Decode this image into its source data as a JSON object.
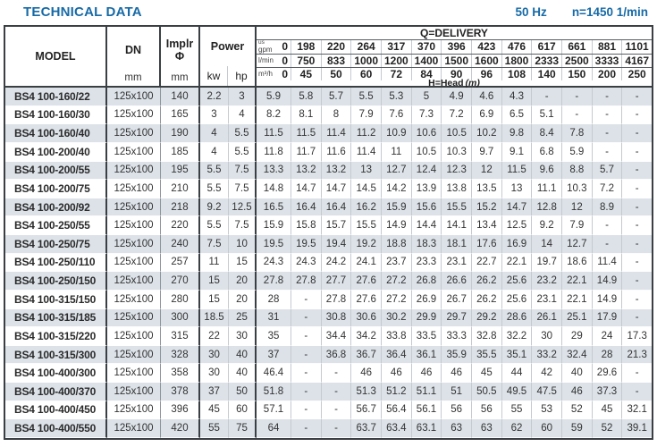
{
  "title": "TECHNICAL DATA",
  "frequency": "50 Hz",
  "speed": "n=1450 1/min",
  "header": {
    "model": "MODEL",
    "dn": "DN",
    "dn_unit": "mm",
    "impeller": "Implr",
    "impeller_symbol": "Φ",
    "impeller_unit": "mm",
    "power": "Power",
    "kw": "kw",
    "hp": "hp",
    "delivery": "Q=DELIVERY",
    "head_label": "H=Head",
    "head_unit": "(m)",
    "gpm_label_top": "us",
    "gpm_label": "gpm",
    "lmin_label": "l/min",
    "m3h_label": "m³/h"
  },
  "delivery": {
    "us_gpm": [
      "0",
      "198",
      "220",
      "264",
      "317",
      "370",
      "396",
      "423",
      "476",
      "617",
      "661",
      "881",
      "1101"
    ],
    "l_min": [
      "0",
      "750",
      "833",
      "1000",
      "1200",
      "1400",
      "1500",
      "1600",
      "1800",
      "2333",
      "2500",
      "3333",
      "4167"
    ],
    "m3_h": [
      "0",
      "45",
      "50",
      "60",
      "72",
      "84",
      "90",
      "96",
      "108",
      "140",
      "150",
      "200",
      "250"
    ]
  },
  "rows": [
    {
      "model": "BS4 100-160/22",
      "dn": "125x100",
      "impeller": "140",
      "kw": "2.2",
      "hp": "3",
      "head": [
        "5.9",
        "5.8",
        "5.7",
        "5.5",
        "5.3",
        "5",
        "4.9",
        "4.6",
        "4.3",
        "-",
        "-",
        "-",
        "-"
      ]
    },
    {
      "model": "BS4 100-160/30",
      "dn": "125x100",
      "impeller": "165",
      "kw": "3",
      "hp": "4",
      "head": [
        "8.2",
        "8.1",
        "8",
        "7.9",
        "7.6",
        "7.3",
        "7.2",
        "6.9",
        "6.5",
        "5.1",
        "-",
        "-",
        "-"
      ]
    },
    {
      "model": "BS4 100-160/40",
      "dn": "125x100",
      "impeller": "190",
      "kw": "4",
      "hp": "5.5",
      "head": [
        "11.5",
        "11.5",
        "11.4",
        "11.2",
        "10.9",
        "10.6",
        "10.5",
        "10.2",
        "9.8",
        "8.4",
        "7.8",
        "-",
        "-"
      ]
    },
    {
      "model": "BS4 100-200/40",
      "dn": "125x100",
      "impeller": "185",
      "kw": "4",
      "hp": "5.5",
      "head": [
        "11.8",
        "11.7",
        "11.6",
        "11.4",
        "11",
        "10.5",
        "10.3",
        "9.7",
        "9.1",
        "6.8",
        "5.9",
        "-",
        "-"
      ]
    },
    {
      "model": "BS4 100-200/55",
      "dn": "125x100",
      "impeller": "195",
      "kw": "5.5",
      "hp": "7.5",
      "head": [
        "13.3",
        "13.2",
        "13.2",
        "13",
        "12.7",
        "12.4",
        "12.3",
        "12",
        "11.5",
        "9.6",
        "8.8",
        "5.7",
        "-"
      ]
    },
    {
      "model": "BS4 100-200/75",
      "dn": "125x100",
      "impeller": "210",
      "kw": "5.5",
      "hp": "7.5",
      "head": [
        "14.8",
        "14.7",
        "14.7",
        "14.5",
        "14.2",
        "13.9",
        "13.8",
        "13.5",
        "13",
        "11.1",
        "10.3",
        "7.2",
        "-"
      ]
    },
    {
      "model": "BS4 100-200/92",
      "dn": "125x100",
      "impeller": "218",
      "kw": "9.2",
      "hp": "12.5",
      "head": [
        "16.5",
        "16.4",
        "16.4",
        "16.2",
        "15.9",
        "15.6",
        "15.5",
        "15.2",
        "14.7",
        "12.8",
        "12",
        "8.9",
        "-"
      ]
    },
    {
      "model": "BS4 100-250/55",
      "dn": "125x100",
      "impeller": "220",
      "kw": "5.5",
      "hp": "7.5",
      "head": [
        "15.9",
        "15.8",
        "15.7",
        "15.5",
        "14.9",
        "14.4",
        "14.1",
        "13.4",
        "12.5",
        "9.2",
        "7.9",
        "-",
        "-"
      ]
    },
    {
      "model": "BS4 100-250/75",
      "dn": "125x100",
      "impeller": "240",
      "kw": "7.5",
      "hp": "10",
      "head": [
        "19.5",
        "19.5",
        "19.4",
        "19.2",
        "18.8",
        "18.3",
        "18.1",
        "17.6",
        "16.9",
        "14",
        "12.7",
        "-",
        "-"
      ]
    },
    {
      "model": "BS4 100-250/110",
      "dn": "125x100",
      "impeller": "257",
      "kw": "11",
      "hp": "15",
      "head": [
        "24.3",
        "24.3",
        "24.2",
        "24.1",
        "23.7",
        "23.3",
        "23.1",
        "22.7",
        "22.1",
        "19.7",
        "18.6",
        "11.4",
        "-"
      ]
    },
    {
      "model": "BS4 100-250/150",
      "dn": "125x100",
      "impeller": "270",
      "kw": "15",
      "hp": "20",
      "head": [
        "27.8",
        "27.8",
        "27.7",
        "27.6",
        "27.2",
        "26.8",
        "26.6",
        "26.2",
        "25.6",
        "23.2",
        "22.1",
        "14.9",
        "-"
      ]
    },
    {
      "model": "BS4 100-315/150",
      "dn": "125x100",
      "impeller": "280",
      "kw": "15",
      "hp": "20",
      "head": [
        "28",
        "-",
        "27.8",
        "27.6",
        "27.2",
        "26.9",
        "26.7",
        "26.2",
        "25.6",
        "23.1",
        "22.1",
        "14.9",
        "-"
      ]
    },
    {
      "model": "BS4 100-315/185",
      "dn": "125x100",
      "impeller": "300",
      "kw": "18.5",
      "hp": "25",
      "head": [
        "31",
        "-",
        "30.8",
        "30.6",
        "30.2",
        "29.9",
        "29.7",
        "29.2",
        "28.6",
        "26.1",
        "25.1",
        "17.9",
        "-"
      ]
    },
    {
      "model": "BS4 100-315/220",
      "dn": "125x100",
      "impeller": "315",
      "kw": "22",
      "hp": "30",
      "head": [
        "35",
        "-",
        "34.4",
        "34.2",
        "33.8",
        "33.5",
        "33.3",
        "32.8",
        "32.2",
        "30",
        "29",
        "24",
        "17.3"
      ]
    },
    {
      "model": "BS4 100-315/300",
      "dn": "125x100",
      "impeller": "328",
      "kw": "30",
      "hp": "40",
      "head": [
        "37",
        "-",
        "36.8",
        "36.7",
        "36.4",
        "36.1",
        "35.9",
        "35.5",
        "35.1",
        "33.2",
        "32.4",
        "28",
        "21.3"
      ]
    },
    {
      "model": "BS4 100-400/300",
      "dn": "125x100",
      "impeller": "358",
      "kw": "30",
      "hp": "40",
      "head": [
        "46.4",
        "-",
        "-",
        "46",
        "46",
        "46",
        "46",
        "45",
        "44",
        "42",
        "40",
        "29.6",
        "-"
      ]
    },
    {
      "model": "BS4 100-400/370",
      "dn": "125x100",
      "impeller": "378",
      "kw": "37",
      "hp": "50",
      "head": [
        "51.8",
        "-",
        "-",
        "51.3",
        "51.2",
        "51.1",
        "51",
        "50.5",
        "49.5",
        "47.5",
        "46",
        "37.3",
        "-"
      ]
    },
    {
      "model": "BS4 100-400/450",
      "dn": "125x100",
      "impeller": "396",
      "kw": "45",
      "hp": "60",
      "head": [
        "57.1",
        "-",
        "-",
        "56.7",
        "56.4",
        "56.1",
        "56",
        "56",
        "55",
        "53",
        "52",
        "45",
        "32.1"
      ]
    },
    {
      "model": "BS4 100-400/550",
      "dn": "125x100",
      "impeller": "420",
      "kw": "55",
      "hp": "75",
      "head": [
        "64",
        "-",
        "-",
        "63.7",
        "63.4",
        "63.1",
        "63",
        "63",
        "62",
        "60",
        "59",
        "52",
        "39.1"
      ]
    }
  ],
  "colors": {
    "accent_blue": "#176aa6",
    "row_stripe": "#dce2e8",
    "border_dark": "#3a3f44"
  }
}
